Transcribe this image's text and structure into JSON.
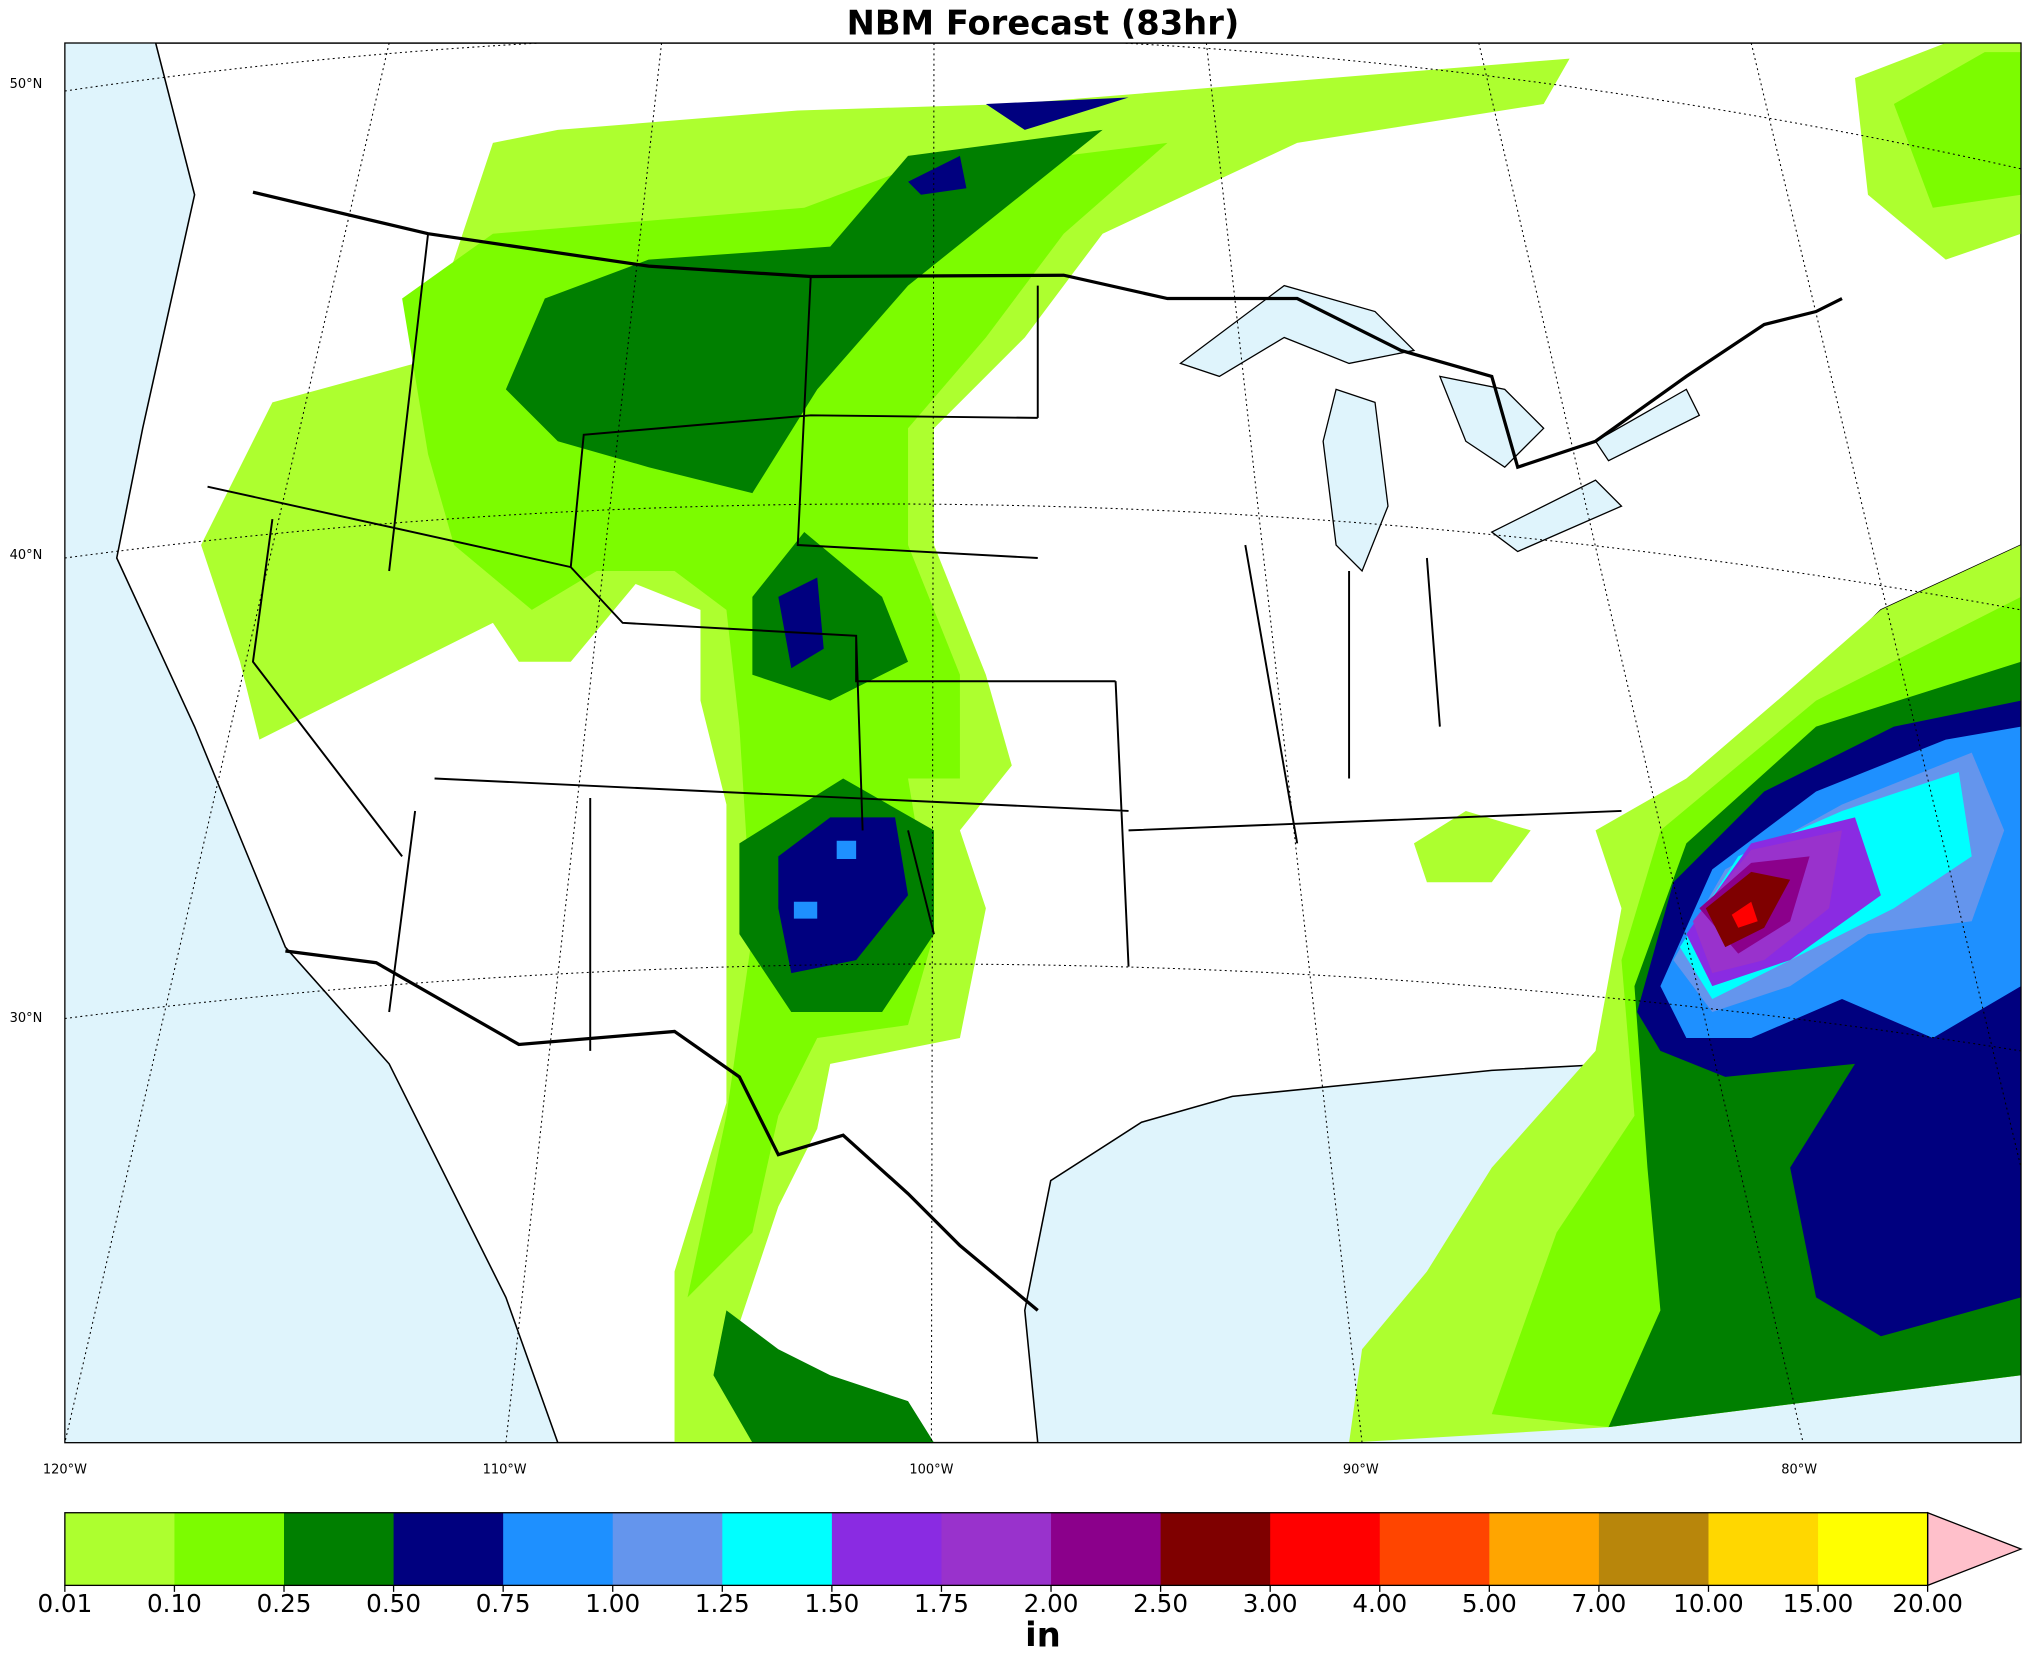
{
  "title": "NBM Forecast (83hr)",
  "map": {
    "lat_labels": [
      "50°N",
      "40°N",
      "30°N"
    ],
    "lon_labels": [
      "120°W",
      "110°W",
      "100°W",
      "90°W",
      "80°W"
    ]
  },
  "colorbar": {
    "label": "in",
    "boundaries": [
      {
        "value": 0.01,
        "label": "0.01"
      },
      {
        "value": 0.1,
        "label": "0.10"
      },
      {
        "value": 0.25,
        "label": "0.25"
      },
      {
        "value": 0.5,
        "label": "0.50"
      },
      {
        "value": 0.75,
        "label": "0.75"
      },
      {
        "value": 1,
        "label": "1.00"
      },
      {
        "value": 1.25,
        "label": "1.25"
      },
      {
        "value": 1.5,
        "label": "1.50"
      },
      {
        "value": 1.75,
        "label": "1.75"
      },
      {
        "value": 2,
        "label": "2.00"
      },
      {
        "value": 2.5,
        "label": "2.50"
      },
      {
        "value": 3,
        "label": "3.00"
      },
      {
        "value": 4,
        "label": "4.00"
      },
      {
        "value": 5,
        "label": "5.00"
      },
      {
        "value": 7,
        "label": "7.00"
      },
      {
        "value": 10,
        "label": "10.00"
      },
      {
        "value": 15,
        "label": "15.00"
      },
      {
        "value": 20,
        "label": "20.00"
      }
    ],
    "colors": [
      "#adff2f",
      "#7cfc00",
      "#007f00",
      "#00007f",
      "#1e90ff",
      "#6495ed",
      "#00ffff",
      "#8a2be2",
      "#9932cc",
      "#8b008b",
      "#7f0000",
      "#ff0000",
      "#ff4500",
      "#ffa500",
      "#b8860b",
      "#ffd700",
      "#ffff00"
    ],
    "extend_color": "#ffc0cb"
  }
}
